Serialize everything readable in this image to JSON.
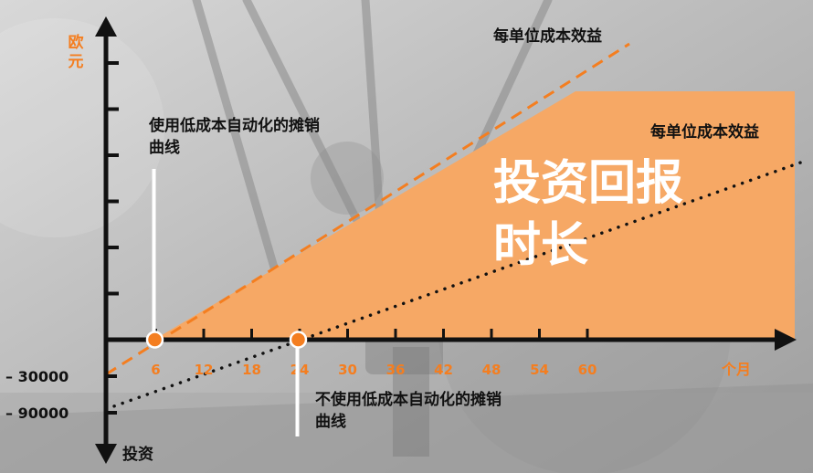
{
  "colors": {
    "accent": "#f47e20",
    "area": "#f6a865",
    "axis": "#111111",
    "text": "#111111",
    "marker_stroke": "#ffffff"
  },
  "chart_data": {
    "type": "line",
    "title": "",
    "xlabel": "个月",
    "ylabel_top": "欧元",
    "ylabel_bottom": "投资",
    "x_ticks": [
      6,
      12,
      18,
      24,
      30,
      36,
      42,
      48,
      54,
      60
    ],
    "xlim": [
      0,
      75
    ],
    "y_tick_labels": [
      "– 30000",
      "– 90000"
    ],
    "y_tick_values": [
      -30000,
      -90000
    ],
    "series": [
      {
        "name": "每单位成本效益",
        "style": "dashed",
        "color": "#f47e20",
        "points": [
          [
            0,
            -30000
          ],
          [
            6,
            0
          ],
          [
            60,
            270000
          ]
        ],
        "break_even_x": 6,
        "curve_label": "使用低成本自动化的摊销曲线"
      },
      {
        "name": "每单位成本效益",
        "style": "dotted",
        "color": "#111111",
        "points": [
          [
            0,
            -90000
          ],
          [
            22,
            0
          ],
          [
            75,
            219000
          ]
        ],
        "break_even_x": 22,
        "curve_label": "不使用低成本自动化的摊销曲线"
      }
    ],
    "shaded_area_label": "投资回报时长",
    "shaded_area_label_lines": [
      "投资回报",
      "时长"
    ]
  }
}
